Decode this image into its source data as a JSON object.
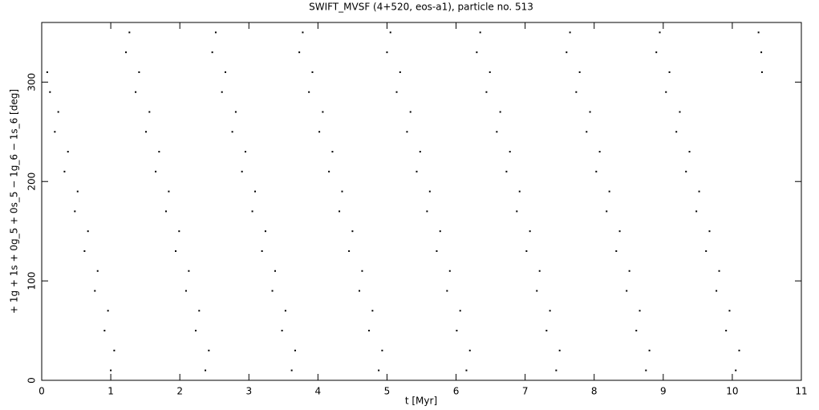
{
  "chart_data": {
    "type": "scatter",
    "title": "SWIFT_MVSF (4+520, eos-a1), particle no. 513",
    "x_label": "t [Myr]",
    "y_label": "+ 1g + 1s + 0g_5 + 0s_5 − 1g_6 − 1s_6 [deg]",
    "color": "#000000",
    "xlim": [
      0,
      11
    ],
    "xticks": [
      0,
      1,
      2,
      3,
      4,
      5,
      6,
      7,
      8,
      9,
      10,
      11
    ],
    "ylim": [
      0,
      360
    ],
    "yticks": [
      0,
      100,
      200,
      300
    ],
    "x": [
      0.08,
      0.12,
      0.24,
      0.19,
      0.38,
      0.33,
      0.52,
      0.48,
      0.67,
      0.62,
      0.81,
      0.77,
      0.96,
      0.91,
      1.05,
      1.0,
      1.27,
      1.22,
      1.41,
      1.36,
      1.56,
      1.51,
      1.7,
      1.65,
      1.84,
      1.8,
      1.99,
      1.94,
      2.13,
      2.09,
      2.28,
      2.23,
      2.42,
      2.37,
      2.52,
      2.47,
      2.66,
      2.61,
      2.81,
      2.76,
      2.95,
      2.9,
      3.09,
      3.05,
      3.24,
      3.19,
      3.38,
      3.34,
      3.53,
      3.48,
      3.67,
      3.62,
      3.78,
      3.73,
      3.92,
      3.87,
      4.07,
      4.02,
      4.21,
      4.16,
      4.35,
      4.31,
      4.5,
      4.45,
      4.64,
      4.6,
      4.79,
      4.74,
      4.93,
      4.88,
      5.05,
      5.0,
      5.19,
      5.14,
      5.34,
      5.29,
      5.48,
      5.43,
      5.62,
      5.58,
      5.77,
      5.72,
      5.91,
      5.87,
      6.06,
      6.01,
      6.2,
      6.15,
      6.35,
      6.3,
      6.49,
      6.44,
      6.64,
      6.59,
      6.78,
      6.73,
      6.92,
      6.88,
      7.07,
      7.02,
      7.21,
      7.17,
      7.36,
      7.31,
      7.5,
      7.45,
      7.65,
      7.6,
      7.79,
      7.74,
      7.94,
      7.89,
      8.08,
      8.03,
      8.22,
      8.18,
      8.37,
      8.32,
      8.51,
      8.47,
      8.66,
      8.61,
      8.8,
      8.75,
      8.95,
      8.9,
      9.09,
      9.04,
      9.24,
      9.19,
      9.38,
      9.33,
      9.52,
      9.48,
      9.67,
      9.62,
      9.81,
      9.77,
      9.96,
      9.91,
      10.1,
      10.05,
      10.38,
      10.42,
      10.43
    ],
    "y": [
      310,
      290,
      270,
      250,
      230,
      210,
      190,
      170,
      150,
      130,
      110,
      90,
      70,
      50,
      30,
      10,
      350,
      330,
      310,
      290,
      270,
      250,
      230,
      210,
      190,
      170,
      150,
      130,
      110,
      90,
      70,
      50,
      30,
      10,
      350,
      330,
      310,
      290,
      270,
      250,
      230,
      210,
      190,
      170,
      150,
      130,
      110,
      90,
      70,
      50,
      30,
      10,
      350,
      330,
      310,
      290,
      270,
      250,
      230,
      210,
      190,
      170,
      150,
      130,
      110,
      90,
      70,
      50,
      30,
      10,
      350,
      330,
      310,
      290,
      270,
      250,
      230,
      210,
      190,
      170,
      150,
      130,
      110,
      90,
      70,
      50,
      30,
      10,
      350,
      330,
      310,
      290,
      270,
      250,
      230,
      210,
      190,
      170,
      150,
      130,
      110,
      90,
      70,
      50,
      30,
      10,
      350,
      330,
      310,
      290,
      270,
      250,
      230,
      210,
      190,
      170,
      150,
      130,
      110,
      90,
      70,
      50,
      30,
      10,
      350,
      330,
      310,
      290,
      270,
      250,
      230,
      210,
      190,
      170,
      150,
      130,
      110,
      90,
      70,
      50,
      30,
      10,
      350,
      330,
      310
    ]
  }
}
